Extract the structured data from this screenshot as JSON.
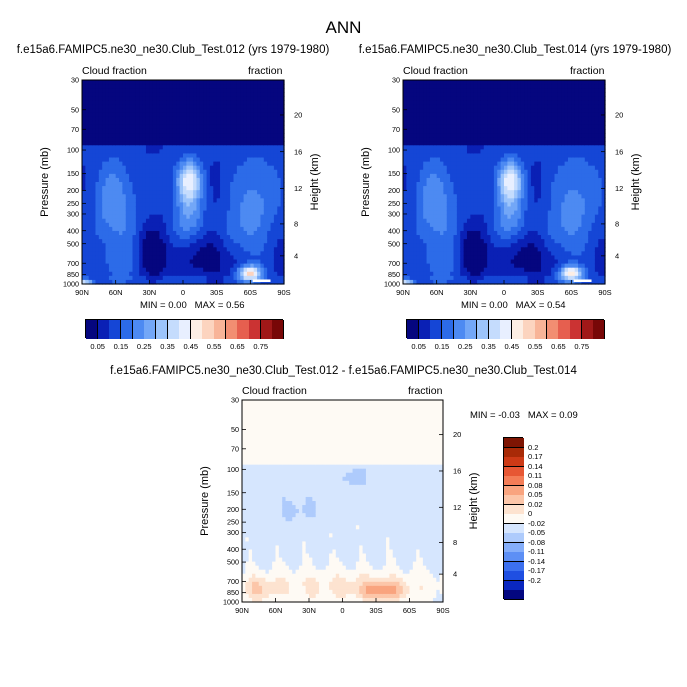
{
  "title": "ANN",
  "chart_data": [
    {
      "type": "heatmap",
      "subtitle": "f.e15a6.FAMIPC5.ne30_ne30.Club_Test.012 (yrs 1979-1980)",
      "left_label": "Cloud fraction",
      "right_label": "fraction",
      "ylabel": "Pressure (mb)",
      "ylabel_right": "Height (km)",
      "x_ticks": [
        "90N",
        "60N",
        "30N",
        "0",
        "30S",
        "60S",
        "90S"
      ],
      "y_ticks": [
        "30",
        "50",
        "70",
        "100",
        "150",
        "200",
        "250",
        "300",
        "400",
        "500",
        "700",
        "850",
        "1000"
      ],
      "height_ticks": [
        "20",
        "16",
        "12",
        "8",
        "4"
      ],
      "min_label": "MIN =",
      "min_value": "0.00",
      "max_label": "MAX =",
      "max_value": "0.56",
      "features": [
        {
          "lat": -5,
          "p": 170,
          "value": 0.4
        },
        {
          "lat": -5,
          "p": 300,
          "value": 0.32
        },
        {
          "lat": 62,
          "p": 250,
          "value": 0.3
        },
        {
          "lat": -65,
          "p": 220,
          "value": 0.28
        },
        {
          "lat": 55,
          "p": 700,
          "value": 0.2
        },
        {
          "lat": -45,
          "p": 400,
          "value": 0.2
        },
        {
          "lat": 28,
          "p": 600,
          "value": 0.04
        },
        {
          "lat": -28,
          "p": 580,
          "value": 0.05
        },
        {
          "lat": -60,
          "p": 830,
          "value": 0.55
        },
        {
          "lat": 85,
          "p": 990,
          "value": 0.4
        },
        {
          "lat": 5,
          "p": 920,
          "value": 0.15
        }
      ]
    },
    {
      "type": "heatmap",
      "subtitle": "f.e15a6.FAMIPC5.ne30_ne30.Club_Test.014 (yrs 1979-1980)",
      "left_label": "Cloud fraction",
      "right_label": "fraction",
      "ylabel": "Pressure (mb)",
      "ylabel_right": "Height (km)",
      "x_ticks": [
        "90N",
        "60N",
        "30N",
        "0",
        "30S",
        "60S",
        "90S"
      ],
      "y_ticks": [
        "30",
        "50",
        "70",
        "100",
        "150",
        "200",
        "250",
        "300",
        "400",
        "500",
        "700",
        "850",
        "1000"
      ],
      "height_ticks": [
        "20",
        "16",
        "12",
        "8",
        "4"
      ],
      "min_label": "MIN =",
      "min_value": "0.00",
      "max_label": "MAX =",
      "max_value": "0.54",
      "features": [
        {
          "lat": -5,
          "p": 170,
          "value": 0.4
        },
        {
          "lat": -5,
          "p": 300,
          "value": 0.32
        },
        {
          "lat": 62,
          "p": 250,
          "value": 0.3
        },
        {
          "lat": -65,
          "p": 220,
          "value": 0.28
        },
        {
          "lat": 55,
          "p": 700,
          "value": 0.2
        },
        {
          "lat": -45,
          "p": 400,
          "value": 0.2
        },
        {
          "lat": 28,
          "p": 600,
          "value": 0.04
        },
        {
          "lat": -28,
          "p": 580,
          "value": 0.05
        },
        {
          "lat": -60,
          "p": 830,
          "value": 0.53
        },
        {
          "lat": 85,
          "p": 990,
          "value": 0.38
        },
        {
          "lat": 5,
          "p": 920,
          "value": 0.15
        }
      ]
    },
    {
      "type": "heatmap",
      "subtitle": "f.e15a6.FAMIPC5.ne30_ne30.Club_Test.012 - f.e15a6.FAMIPC5.ne30_ne30.Club_Test.014",
      "left_label": "Cloud fraction",
      "right_label": "fraction",
      "ylabel": "Pressure (mb)",
      "ylabel_right": "Height (km)",
      "x_ticks": [
        "90N",
        "60N",
        "30N",
        "0",
        "30S",
        "60S",
        "90S"
      ],
      "y_ticks": [
        "30",
        "50",
        "70",
        "100",
        "150",
        "200",
        "250",
        "300",
        "400",
        "500",
        "700",
        "850",
        "1000"
      ],
      "height_ticks": [
        "20",
        "16",
        "12",
        "8",
        "4"
      ],
      "min_label": "MIN =",
      "min_value": "-0.03",
      "max_label": "MAX =",
      "max_value": "0.09",
      "features": [
        {
          "lat": -35,
          "p": 820,
          "value": 0.07
        },
        {
          "lat": 75,
          "p": 800,
          "value": 0.04
        },
        {
          "lat": 10,
          "p": 730,
          "value": 0.02
        },
        {
          "lat": -10,
          "p": 110,
          "value": -0.03
        },
        {
          "lat": 40,
          "p": 200,
          "value": -0.02
        }
      ]
    }
  ],
  "colorbar_main": {
    "colors": [
      "#05067f",
      "#0a20b5",
      "#1546d6",
      "#2c6be8",
      "#4d8af2",
      "#73a7f7",
      "#9cc4fb",
      "#c5dcfd",
      "#e8efff",
      "#fdeee4",
      "#fcd4bf",
      "#f8b498",
      "#f28e72",
      "#e65f4f",
      "#cb3333",
      "#a01818",
      "#780707"
    ],
    "labels": [
      "0.05",
      "0.15",
      "0.25",
      "0.35",
      "0.45",
      "0.55",
      "0.65",
      "0.75"
    ]
  },
  "colorbar_diff": {
    "colors": [
      "#030780",
      "#0a27c0",
      "#1f4fe2",
      "#3c70ef",
      "#5d8ff5",
      "#85aefa",
      "#aecbfc",
      "#d6e6fe",
      "#fefaf4",
      "#fde3d0",
      "#fcc6a9",
      "#f9a47f",
      "#f47d57",
      "#e75734",
      "#cd3a16",
      "#a82a07",
      "#7e1503"
    ],
    "labels": [
      "0.2",
      "0.17",
      "0.14",
      "0.11",
      "0.08",
      "0.05",
      "0.02",
      "0",
      "-0.02",
      "-0.05",
      "-0.08",
      "-0.11",
      "-0.14",
      "-0.17",
      "-0.2"
    ]
  }
}
